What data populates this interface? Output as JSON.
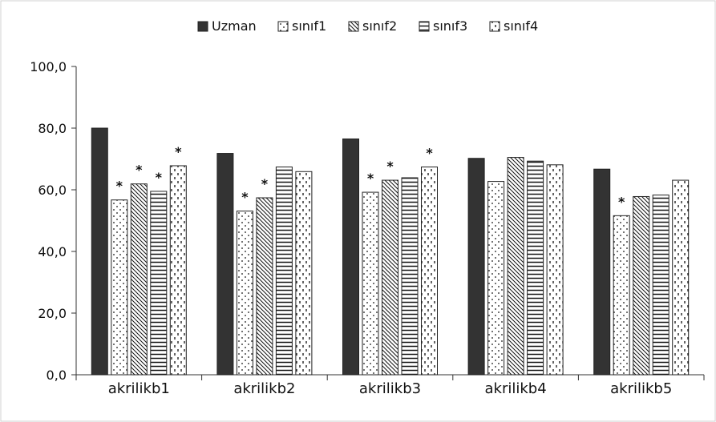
{
  "chart_data": {
    "type": "bar",
    "categories": [
      "akrilikb1",
      "akrilikb2",
      "akrilikb3",
      "akrilikb4",
      "akrilikb5"
    ],
    "series": [
      {
        "name": "Uzman",
        "pattern": "solid",
        "values": [
          80.0,
          71.8,
          76.5,
          70.2,
          66.7
        ]
      },
      {
        "name": "sınıf1",
        "pattern": "dots",
        "values": [
          56.7,
          53.1,
          59.2,
          62.7,
          51.6
        ]
      },
      {
        "name": "sınıf2",
        "pattern": "diagonal",
        "values": [
          61.9,
          57.4,
          63.1,
          70.5,
          57.8
        ]
      },
      {
        "name": "sınıf3",
        "pattern": "horizontal",
        "values": [
          59.5,
          67.4,
          63.9,
          69.3,
          58.3
        ]
      },
      {
        "name": "sınıf4",
        "pattern": "dashes",
        "values": [
          67.8,
          65.9,
          67.4,
          68.1,
          63.1
        ]
      }
    ],
    "significance": [
      [
        false,
        true,
        true,
        true,
        true
      ],
      [
        false,
        true,
        true,
        false,
        false
      ],
      [
        false,
        true,
        true,
        false,
        true
      ],
      [
        false,
        false,
        false,
        false,
        false
      ],
      [
        false,
        true,
        false,
        false,
        false
      ]
    ],
    "significance_marker": "*",
    "ylim": [
      0,
      100
    ],
    "yticks": [
      "0,0",
      "20,0",
      "40,0",
      "60,0",
      "80,0",
      "100,0"
    ],
    "ytick_values": [
      0,
      20,
      40,
      60,
      80,
      100
    ],
    "title": "",
    "xlabel": "",
    "ylabel": "",
    "grid": false,
    "legend_position": "top-center"
  }
}
